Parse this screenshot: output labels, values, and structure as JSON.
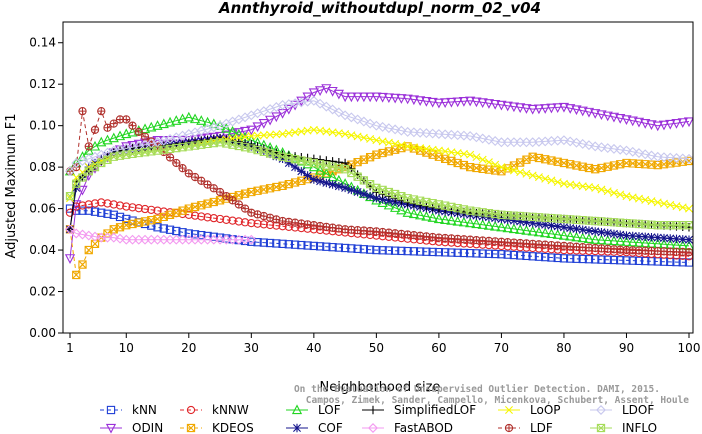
{
  "chart_data": {
    "type": "line",
    "title": "Annthyroid_withoutdupl_norm_02_v04",
    "xlabel": "Neighborhood size",
    "ylabel": "Adjusted Maximum F1",
    "xlim": [
      1,
      100
    ],
    "ylim": [
      0,
      0.15
    ],
    "xticks": [
      "1",
      "10",
      "20",
      "30",
      "40",
      "50",
      "60",
      "70",
      "80",
      "90",
      "100"
    ],
    "yticks": [
      "0.00",
      "0.02",
      "0.04",
      "0.06",
      "0.08",
      "0.10",
      "0.12",
      "0.14"
    ],
    "grid": false,
    "legend_position": "bottom",
    "watermark": [
      "Campos, Zimek, Sander, Campello, Micenkova, Schubert, Assent, Houle",
      "On the Evaluation of Unsupervised Outlier Detection. DAMI, 2015."
    ],
    "series": [
      {
        "name": "kNN",
        "color": "#1f3fd6",
        "marker": "square",
        "dash": "dashed",
        "points": [
          [
            1,
            0.06
          ],
          [
            2,
            0.059
          ],
          [
            4,
            0.059
          ],
          [
            6,
            0.058
          ],
          [
            8,
            0.057
          ],
          [
            10,
            0.055
          ],
          [
            15,
            0.051
          ],
          [
            20,
            0.048
          ],
          [
            25,
            0.046
          ],
          [
            30,
            0.044
          ],
          [
            40,
            0.042
          ],
          [
            50,
            0.04
          ],
          [
            60,
            0.039
          ],
          [
            70,
            0.038
          ],
          [
            80,
            0.036
          ],
          [
            90,
            0.035
          ],
          [
            100,
            0.034
          ]
        ]
      },
      {
        "name": "ODIN",
        "color": "#9b30d9",
        "marker": "triangle-down",
        "dash": "solid",
        "points": [
          [
            1,
            0.036
          ],
          [
            2,
            0.062
          ],
          [
            4,
            0.076
          ],
          [
            6,
            0.083
          ],
          [
            8,
            0.087
          ],
          [
            10,
            0.09
          ],
          [
            15,
            0.093
          ],
          [
            20,
            0.093
          ],
          [
            25,
            0.095
          ],
          [
            30,
            0.098
          ],
          [
            35,
            0.106
          ],
          [
            40,
            0.116
          ],
          [
            42,
            0.118
          ],
          [
            45,
            0.114
          ],
          [
            50,
            0.114
          ],
          [
            55,
            0.113
          ],
          [
            60,
            0.111
          ],
          [
            65,
            0.112
          ],
          [
            70,
            0.11
          ],
          [
            75,
            0.108
          ],
          [
            80,
            0.109
          ],
          [
            85,
            0.106
          ],
          [
            90,
            0.103
          ],
          [
            95,
            0.1
          ],
          [
            100,
            0.102
          ]
        ]
      },
      {
        "name": "kNNW",
        "color": "#e0262a",
        "marker": "circle",
        "dash": "dashed",
        "points": [
          [
            1,
            0.058
          ],
          [
            2,
            0.061
          ],
          [
            4,
            0.062
          ],
          [
            6,
            0.063
          ],
          [
            8,
            0.062
          ],
          [
            10,
            0.061
          ],
          [
            15,
            0.059
          ],
          [
            20,
            0.057
          ],
          [
            25,
            0.055
          ],
          [
            30,
            0.053
          ],
          [
            40,
            0.05
          ],
          [
            50,
            0.047
          ],
          [
            60,
            0.044
          ],
          [
            70,
            0.042
          ],
          [
            80,
            0.04
          ],
          [
            90,
            0.039
          ],
          [
            100,
            0.037
          ]
        ]
      },
      {
        "name": "KDEOS",
        "color": "#f0a800",
        "marker": "square-x",
        "dash": "dashed",
        "points": [
          [
            1,
            0.05
          ],
          [
            2,
            0.028
          ],
          [
            3,
            0.033
          ],
          [
            4,
            0.04
          ],
          [
            6,
            0.046
          ],
          [
            8,
            0.05
          ],
          [
            10,
            0.052
          ],
          [
            15,
            0.055
          ],
          [
            20,
            0.06
          ],
          [
            25,
            0.064
          ],
          [
            30,
            0.068
          ],
          [
            35,
            0.071
          ],
          [
            40,
            0.075
          ],
          [
            45,
            0.08
          ],
          [
            50,
            0.086
          ],
          [
            55,
            0.09
          ],
          [
            60,
            0.085
          ],
          [
            65,
            0.08
          ],
          [
            70,
            0.078
          ],
          [
            75,
            0.085
          ],
          [
            80,
            0.082
          ],
          [
            85,
            0.079
          ],
          [
            90,
            0.082
          ],
          [
            95,
            0.081
          ],
          [
            100,
            0.083
          ]
        ]
      },
      {
        "name": "LOF",
        "color": "#22d622",
        "marker": "triangle-up",
        "dash": "solid",
        "points": [
          [
            1,
            0.078
          ],
          [
            2,
            0.082
          ],
          [
            4,
            0.088
          ],
          [
            6,
            0.092
          ],
          [
            8,
            0.094
          ],
          [
            10,
            0.096
          ],
          [
            15,
            0.1
          ],
          [
            20,
            0.104
          ],
          [
            25,
            0.1
          ],
          [
            30,
            0.093
          ],
          [
            35,
            0.087
          ],
          [
            40,
            0.08
          ],
          [
            45,
            0.072
          ],
          [
            50,
            0.064
          ],
          [
            55,
            0.058
          ],
          [
            60,
            0.055
          ],
          [
            65,
            0.053
          ],
          [
            70,
            0.051
          ],
          [
            75,
            0.049
          ],
          [
            80,
            0.047
          ],
          [
            85,
            0.045
          ],
          [
            90,
            0.044
          ],
          [
            95,
            0.043
          ],
          [
            100,
            0.042
          ]
        ]
      },
      {
        "name": "COF",
        "color": "#14148c",
        "marker": "asterisk",
        "dash": "solid",
        "points": [
          [
            1,
            0.05
          ],
          [
            2,
            0.07
          ],
          [
            4,
            0.08
          ],
          [
            6,
            0.084
          ],
          [
            8,
            0.087
          ],
          [
            10,
            0.088
          ],
          [
            15,
            0.09
          ],
          [
            20,
            0.092
          ],
          [
            25,
            0.094
          ],
          [
            30,
            0.09
          ],
          [
            35,
            0.084
          ],
          [
            40,
            0.074
          ],
          [
            45,
            0.07
          ],
          [
            50,
            0.065
          ],
          [
            55,
            0.062
          ],
          [
            60,
            0.059
          ],
          [
            65,
            0.057
          ],
          [
            70,
            0.055
          ],
          [
            75,
            0.053
          ],
          [
            80,
            0.051
          ],
          [
            85,
            0.049
          ],
          [
            90,
            0.047
          ],
          [
            95,
            0.046
          ],
          [
            100,
            0.045
          ]
        ]
      },
      {
        "name": "SimplifiedLOF",
        "color": "#000000",
        "marker": "plus",
        "dash": "solid",
        "points": [
          [
            1,
            0.05
          ],
          [
            2,
            0.073
          ],
          [
            4,
            0.078
          ],
          [
            6,
            0.083
          ],
          [
            8,
            0.087
          ],
          [
            10,
            0.089
          ],
          [
            15,
            0.09
          ],
          [
            20,
            0.092
          ],
          [
            25,
            0.094
          ],
          [
            30,
            0.091
          ],
          [
            35,
            0.086
          ],
          [
            40,
            0.084
          ],
          [
            45,
            0.082
          ],
          [
            50,
            0.068
          ],
          [
            55,
            0.063
          ],
          [
            60,
            0.06
          ],
          [
            65,
            0.058
          ],
          [
            70,
            0.057
          ],
          [
            75,
            0.056
          ],
          [
            80,
            0.055
          ],
          [
            85,
            0.054
          ],
          [
            90,
            0.053
          ],
          [
            95,
            0.052
          ],
          [
            100,
            0.051
          ]
        ]
      },
      {
        "name": "FastABOD",
        "color": "#f39af0",
        "marker": "diamond",
        "dash": "solid",
        "points": [
          [
            1,
            0.05
          ],
          [
            2,
            0.048
          ],
          [
            4,
            0.047
          ],
          [
            6,
            0.046
          ],
          [
            8,
            0.046
          ],
          [
            10,
            0.045
          ],
          [
            15,
            0.045
          ],
          [
            20,
            0.045
          ],
          [
            25,
            0.045
          ],
          [
            30,
            0.045
          ]
        ]
      },
      {
        "name": "LoOP",
        "color": "#f6f600",
        "marker": "x",
        "dash": "solid",
        "points": [
          [
            1,
            0.065
          ],
          [
            2,
            0.075
          ],
          [
            4,
            0.08
          ],
          [
            6,
            0.083
          ],
          [
            8,
            0.085
          ],
          [
            10,
            0.086
          ],
          [
            15,
            0.088
          ],
          [
            20,
            0.09
          ],
          [
            25,
            0.093
          ],
          [
            30,
            0.095
          ],
          [
            35,
            0.096
          ],
          [
            40,
            0.098
          ],
          [
            45,
            0.096
          ],
          [
            50,
            0.093
          ],
          [
            55,
            0.09
          ],
          [
            60,
            0.088
          ],
          [
            65,
            0.086
          ],
          [
            70,
            0.08
          ],
          [
            75,
            0.076
          ],
          [
            80,
            0.072
          ],
          [
            85,
            0.07
          ],
          [
            90,
            0.066
          ],
          [
            95,
            0.063
          ],
          [
            100,
            0.06
          ]
        ]
      },
      {
        "name": "LDF",
        "color": "#b0302c",
        "marker": "circle-plus",
        "dash": "dashed",
        "points": [
          [
            1,
            0.078
          ],
          [
            2,
            0.08
          ],
          [
            3,
            0.107
          ],
          [
            4,
            0.09
          ],
          [
            5,
            0.098
          ],
          [
            6,
            0.107
          ],
          [
            7,
            0.099
          ],
          [
            8,
            0.101
          ],
          [
            9,
            0.103
          ],
          [
            10,
            0.103
          ],
          [
            12,
            0.097
          ],
          [
            15,
            0.09
          ],
          [
            18,
            0.082
          ],
          [
            20,
            0.077
          ],
          [
            25,
            0.068
          ],
          [
            30,
            0.058
          ],
          [
            35,
            0.054
          ],
          [
            40,
            0.052
          ],
          [
            45,
            0.05
          ],
          [
            50,
            0.049
          ],
          [
            60,
            0.046
          ],
          [
            70,
            0.044
          ],
          [
            80,
            0.042
          ],
          [
            90,
            0.04
          ],
          [
            100,
            0.039
          ]
        ]
      },
      {
        "name": "LDOF",
        "color": "#c8c8ee",
        "marker": "diamond",
        "dash": "solid",
        "points": [
          [
            1,
            0.078
          ],
          [
            2,
            0.082
          ],
          [
            4,
            0.084
          ],
          [
            6,
            0.086
          ],
          [
            8,
            0.088
          ],
          [
            10,
            0.089
          ],
          [
            15,
            0.092
          ],
          [
            20,
            0.096
          ],
          [
            25,
            0.1
          ],
          [
            30,
            0.105
          ],
          [
            35,
            0.11
          ],
          [
            40,
            0.112
          ],
          [
            45,
            0.105
          ],
          [
            50,
            0.1
          ],
          [
            55,
            0.097
          ],
          [
            60,
            0.096
          ],
          [
            65,
            0.095
          ],
          [
            70,
            0.092
          ],
          [
            75,
            0.092
          ],
          [
            80,
            0.093
          ],
          [
            85,
            0.09
          ],
          [
            90,
            0.088
          ],
          [
            95,
            0.085
          ],
          [
            100,
            0.084
          ]
        ]
      },
      {
        "name": "INFLO",
        "color": "#a6dc5a",
        "marker": "square-x",
        "dash": "solid",
        "points": [
          [
            1,
            0.066
          ],
          [
            2,
            0.072
          ],
          [
            4,
            0.078
          ],
          [
            6,
            0.082
          ],
          [
            8,
            0.085
          ],
          [
            10,
            0.086
          ],
          [
            15,
            0.088
          ],
          [
            20,
            0.09
          ],
          [
            25,
            0.092
          ],
          [
            30,
            0.089
          ],
          [
            35,
            0.085
          ],
          [
            40,
            0.082
          ],
          [
            45,
            0.079
          ],
          [
            50,
            0.07
          ],
          [
            55,
            0.065
          ],
          [
            60,
            0.062
          ],
          [
            65,
            0.059
          ],
          [
            70,
            0.057
          ],
          [
            75,
            0.056
          ],
          [
            80,
            0.055
          ],
          [
            85,
            0.054
          ],
          [
            90,
            0.053
          ],
          [
            95,
            0.052
          ],
          [
            100,
            0.052
          ]
        ]
      }
    ]
  }
}
